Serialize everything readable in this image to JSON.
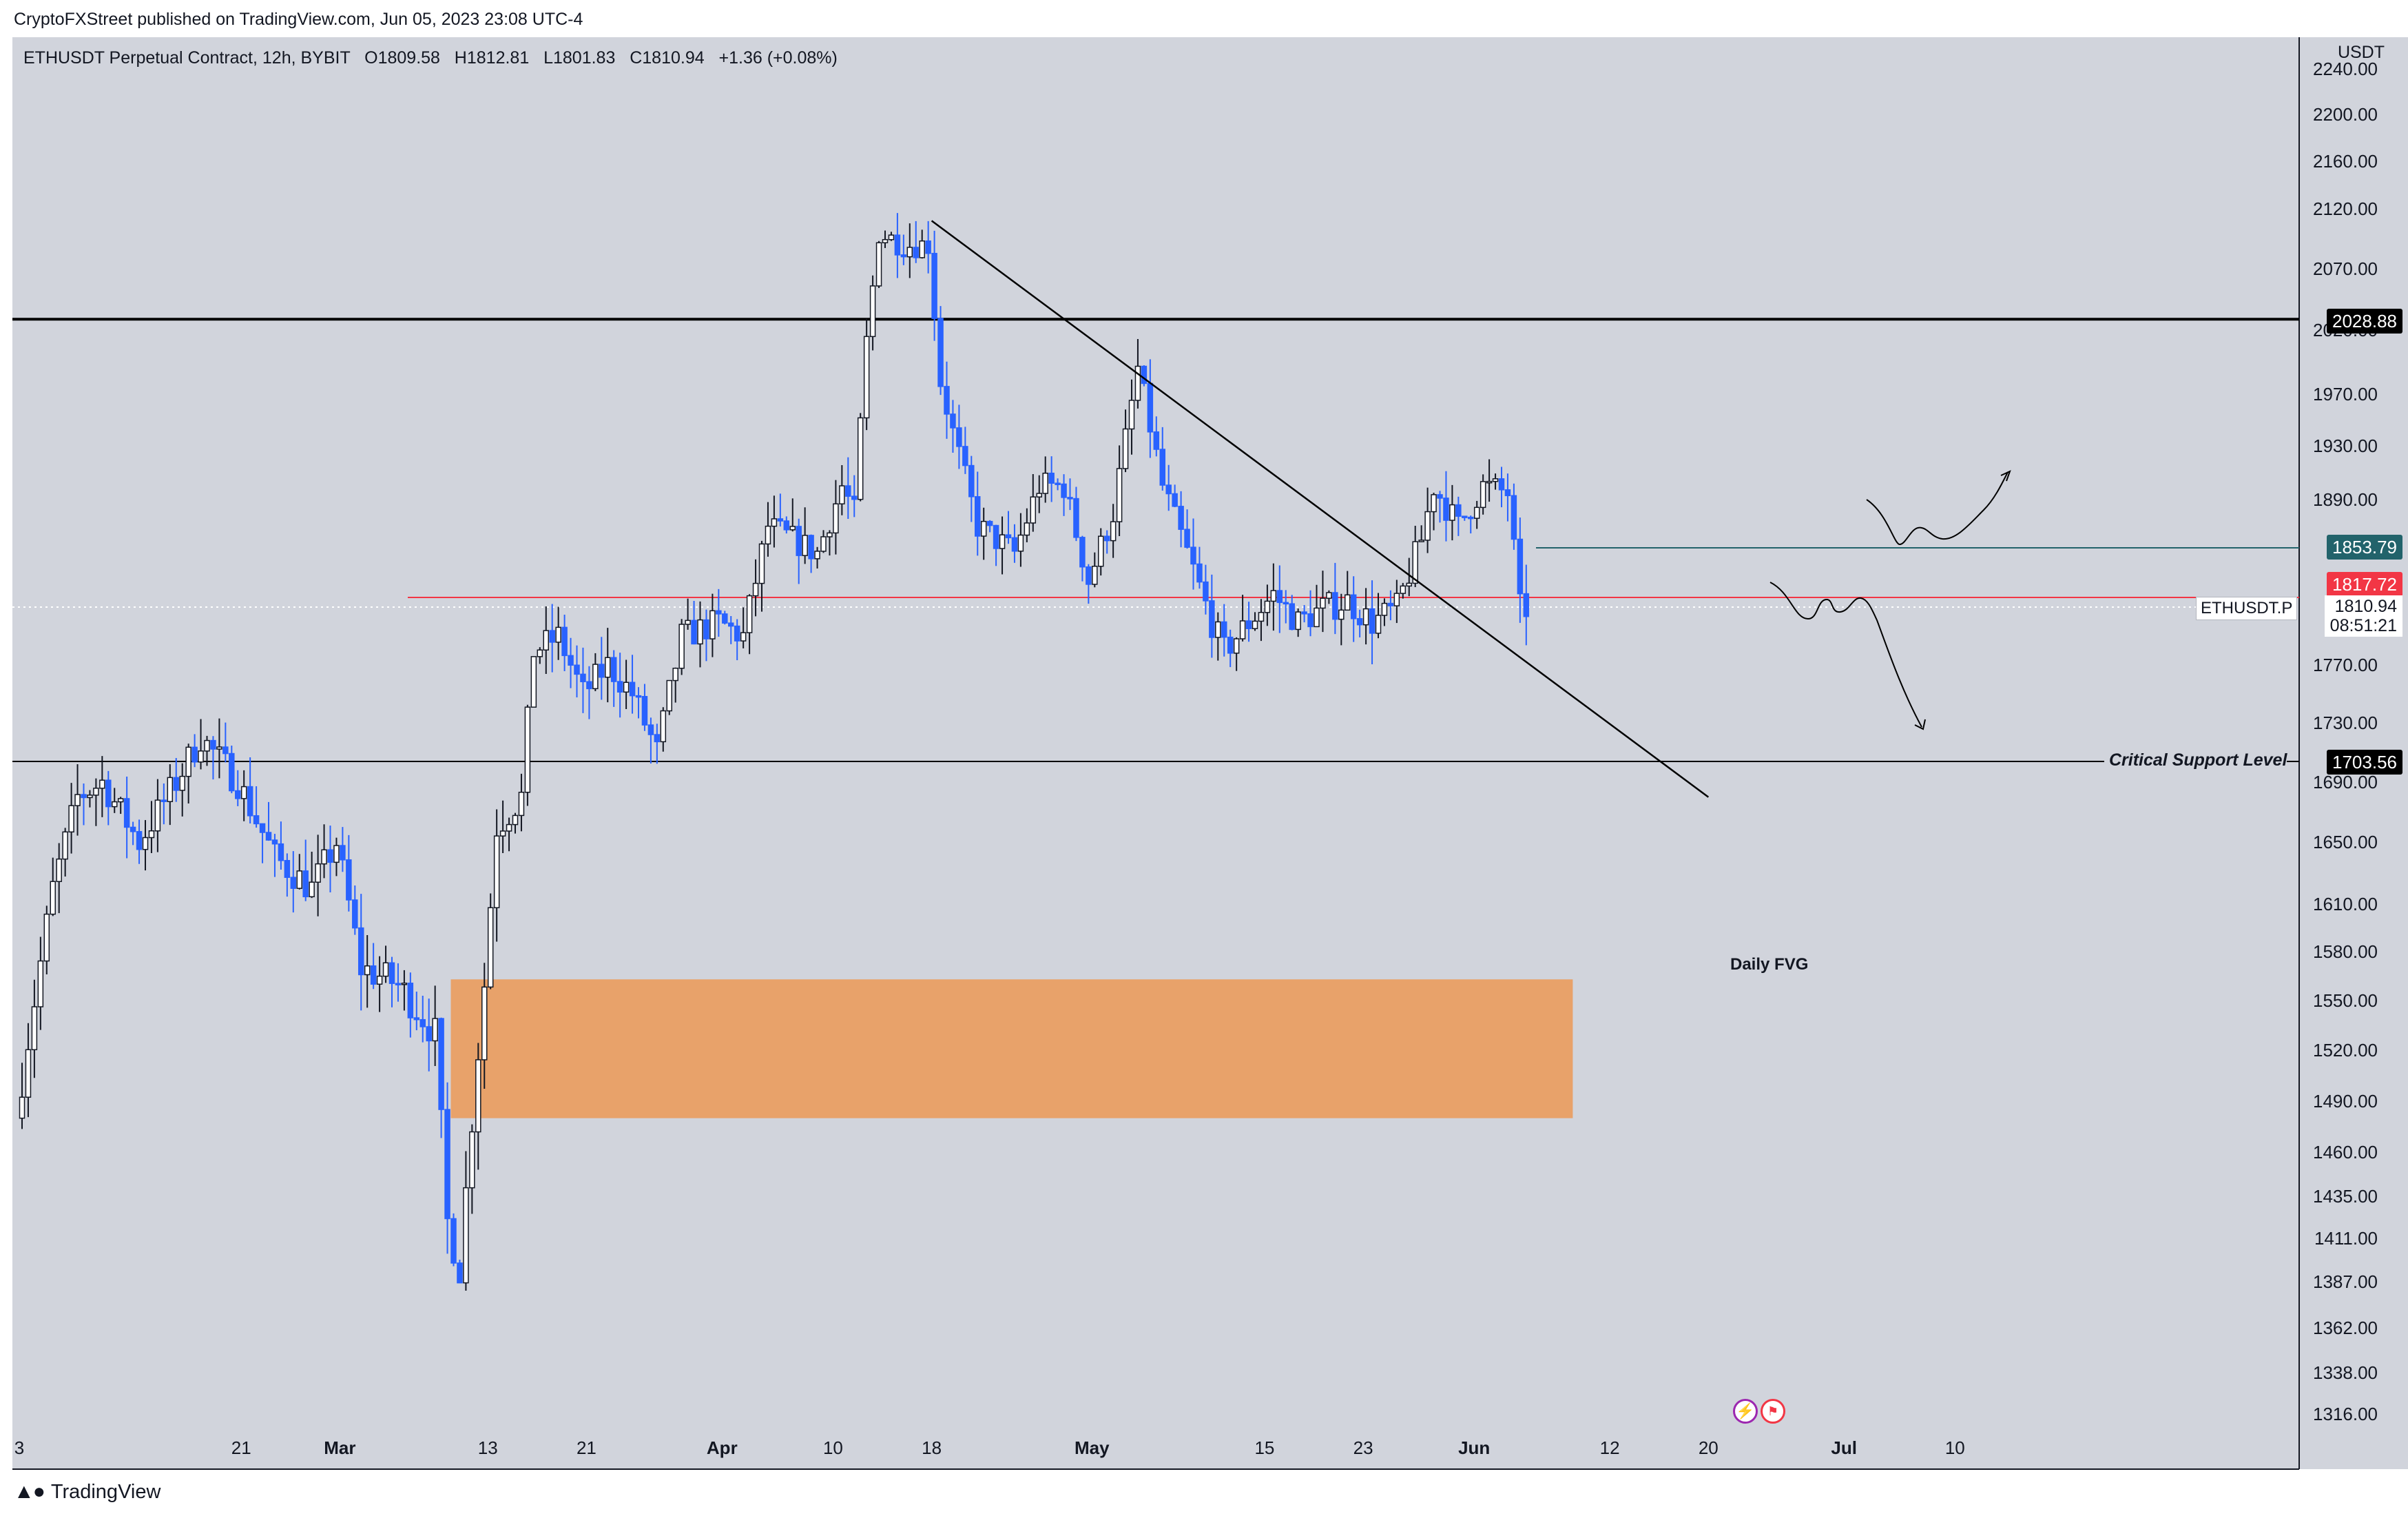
{
  "header": {
    "published": "CryptoFXStreet published on TradingView.com, Jun 05, 2023 23:08 UTC-4",
    "symbol": "ETHUSDT Perpetual Contract, 12h, BYBIT",
    "ohlc": {
      "O": "1809.58",
      "H": "1812.81",
      "L": "1801.83",
      "C": "1810.94",
      "change": "+1.36 (+0.08%)"
    }
  },
  "axis": {
    "currency": "USDT"
  },
  "labels": {
    "resistance": "2028.88",
    "level_green": "1853.79",
    "level_red": "1817.72",
    "symbol_tag": "ETHUSDT.P",
    "last_price": "1810.94",
    "countdown": "08:51:21",
    "critical_support": "1703.56",
    "critical_support_text": "Critical Support Level",
    "fvg": "Daily FVG"
  },
  "footer": {
    "brand": "TradingView"
  },
  "colors": {
    "background": "#d1d4dc",
    "up_candle": "#ffffff",
    "down_candle": "#2962ff",
    "fvg": "#e8a26a",
    "red_level": "#f23645",
    "green_level": "#22636b",
    "line": "#000000"
  },
  "chart_data": {
    "type": "candlestick",
    "title": "ETHUSDT Perpetual Contract, 12h, BYBIT",
    "y_ticks": [
      2240,
      2200,
      2160,
      2120,
      2070,
      2028.88,
      1970,
      1930,
      1890,
      1853.79,
      1817.72,
      1810.94,
      1770,
      1730,
      1703.56,
      1690,
      1650,
      1610,
      1580,
      1550,
      1520,
      1490,
      1460,
      1435,
      1411,
      1387,
      1362,
      1338,
      1316
    ],
    "axis_ticks": [
      "2240.00",
      "2200.00",
      "2160.00",
      "2120.00",
      "2070.00",
      "2020.00",
      "1970.00",
      "1930.00",
      "1890.00",
      "1770.00",
      "1730.00",
      "1690.00",
      "1650.00",
      "1610.00",
      "1580.00",
      "1550.00",
      "1520.00",
      "1490.00",
      "1460.00",
      "1435.00",
      "1411.00",
      "1387.00",
      "1362.00",
      "1338.00",
      "1316.00"
    ],
    "x_ticks": [
      "3",
      "21",
      "Mar",
      "13",
      "21",
      "Apr",
      "10",
      "18",
      "May",
      "15",
      "23",
      "Jun",
      "12",
      "20",
      "Jul",
      "10"
    ],
    "horizontal_levels": [
      {
        "price": 2028.88,
        "style": "black thick"
      },
      {
        "price": 1853.79,
        "style": "teal"
      },
      {
        "price": 1817.72,
        "style": "red"
      },
      {
        "price": 1703.56,
        "style": "black",
        "label": "Critical Support Level"
      }
    ],
    "trendline": {
      "from": [
        "2023-04-18",
        2110
      ],
      "to": [
        "2023-06-20",
        1680
      ]
    },
    "zones": [
      {
        "label": "Daily FVG",
        "from_date": "2023-03-10",
        "to_date": "2023-06-09",
        "y_top": 1563,
        "y_bottom": 1480
      }
    ],
    "keypoints": [
      {
        "date": "2023-02-03",
        "price": 1480
      },
      {
        "date": "2023-02-06",
        "price": 1620
      },
      {
        "date": "2023-02-08",
        "price": 1680
      },
      {
        "date": "2023-02-10",
        "price": 1690
      },
      {
        "date": "2023-02-13",
        "price": 1650
      },
      {
        "date": "2023-02-16",
        "price": 1690
      },
      {
        "date": "2023-02-18",
        "price": 1720
      },
      {
        "date": "2023-02-21",
        "price": 1690
      },
      {
        "date": "2023-02-24",
        "price": 1640
      },
      {
        "date": "2023-02-27",
        "price": 1620
      },
      {
        "date": "2023-03-01",
        "price": 1650
      },
      {
        "date": "2023-03-03",
        "price": 1570
      },
      {
        "date": "2023-03-06",
        "price": 1560
      },
      {
        "date": "2023-03-09",
        "price": 1530
      },
      {
        "date": "2023-03-10",
        "price": 1420
      },
      {
        "date": "2023-03-11",
        "price": 1395
      },
      {
        "date": "2023-03-12",
        "price": 1480
      },
      {
        "date": "2023-03-13",
        "price": 1560
      },
      {
        "date": "2023-03-14",
        "price": 1660
      },
      {
        "date": "2023-03-16",
        "price": 1680
      },
      {
        "date": "2023-03-17",
        "price": 1780
      },
      {
        "date": "2023-03-19",
        "price": 1790
      },
      {
        "date": "2023-03-21",
        "price": 1750
      },
      {
        "date": "2023-03-23",
        "price": 1770
      },
      {
        "date": "2023-03-25",
        "price": 1750
      },
      {
        "date": "2023-03-27",
        "price": 1710
      },
      {
        "date": "2023-03-29",
        "price": 1790
      },
      {
        "date": "2023-04-01",
        "price": 1800
      },
      {
        "date": "2023-04-03",
        "price": 1790
      },
      {
        "date": "2023-04-05",
        "price": 1870
      },
      {
        "date": "2023-04-07",
        "price": 1860
      },
      {
        "date": "2023-04-09",
        "price": 1850
      },
      {
        "date": "2023-04-11",
        "price": 1900
      },
      {
        "date": "2023-04-12",
        "price": 1880
      },
      {
        "date": "2023-04-13",
        "price": 2010
      },
      {
        "date": "2023-04-14",
        "price": 2100
      },
      {
        "date": "2023-04-16",
        "price": 2090
      },
      {
        "date": "2023-04-18",
        "price": 2090
      },
      {
        "date": "2023-04-19",
        "price": 1980
      },
      {
        "date": "2023-04-20",
        "price": 1940
      },
      {
        "date": "2023-04-22",
        "price": 1870
      },
      {
        "date": "2023-04-25",
        "price": 1850
      },
      {
        "date": "2023-04-27",
        "price": 1900
      },
      {
        "date": "2023-04-29",
        "price": 1900
      },
      {
        "date": "2023-05-01",
        "price": 1830
      },
      {
        "date": "2023-05-03",
        "price": 1880
      },
      {
        "date": "2023-05-05",
        "price": 1990
      },
      {
        "date": "2023-05-07",
        "price": 1900
      },
      {
        "date": "2023-05-09",
        "price": 1850
      },
      {
        "date": "2023-05-11",
        "price": 1800
      },
      {
        "date": "2023-05-12",
        "price": 1780
      },
      {
        "date": "2023-05-14",
        "price": 1800
      },
      {
        "date": "2023-05-16",
        "price": 1820
      },
      {
        "date": "2023-05-18",
        "price": 1800
      },
      {
        "date": "2023-05-20",
        "price": 1810
      },
      {
        "date": "2023-05-22",
        "price": 1815
      },
      {
        "date": "2023-05-24",
        "price": 1800
      },
      {
        "date": "2023-05-26",
        "price": 1810
      },
      {
        "date": "2023-05-28",
        "price": 1860
      },
      {
        "date": "2023-05-29",
        "price": 1900
      },
      {
        "date": "2023-05-31",
        "price": 1870
      },
      {
        "date": "2023-06-02",
        "price": 1900
      },
      {
        "date": "2023-06-04",
        "price": 1895
      },
      {
        "date": "2023-06-05",
        "price": 1810
      }
    ]
  }
}
